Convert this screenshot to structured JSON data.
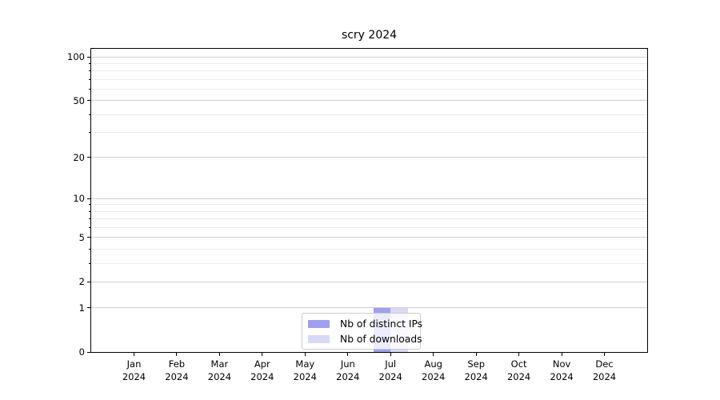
{
  "chart_data": {
    "type": "bar",
    "title": "scry 2024",
    "categories": [
      "Jan 2024",
      "Feb 2024",
      "Mar 2024",
      "Apr 2024",
      "May 2024",
      "Jun 2024",
      "Jul 2024",
      "Aug 2024",
      "Sep 2024",
      "Oct 2024",
      "Nov 2024",
      "Dec 2024"
    ],
    "months": [
      "Jan",
      "Feb",
      "Mar",
      "Apr",
      "May",
      "Jun",
      "Jul",
      "Aug",
      "Sep",
      "Oct",
      "Nov",
      "Dec"
    ],
    "year": "2024",
    "series": [
      {
        "name": "Nb of distinct IPs",
        "color": "#9f9fed",
        "values": [
          0,
          0,
          0,
          0,
          0,
          0,
          1,
          0,
          0,
          0,
          0,
          0
        ]
      },
      {
        "name": "Nb of downloads",
        "color": "#d9d9f6",
        "values": [
          0,
          0,
          0,
          0,
          0,
          0,
          1,
          0,
          0,
          0,
          0,
          0
        ]
      }
    ],
    "xlabel": "",
    "ylabel": "",
    "y_axis": {
      "scale": "log1p",
      "ticks": [
        0,
        1,
        2,
        5,
        10,
        20,
        50,
        100
      ],
      "minor_gridlines": [
        3,
        4,
        6,
        7,
        8,
        9,
        30,
        40,
        60,
        70,
        80,
        90
      ],
      "range": [
        0,
        113
      ]
    },
    "grid": true,
    "legend_position": "lower center"
  },
  "colors": {
    "axis": "#000000",
    "major_grid": "#d0d0d0",
    "minor_grid": "#ebebeb",
    "legend_border": "#cccccc"
  }
}
